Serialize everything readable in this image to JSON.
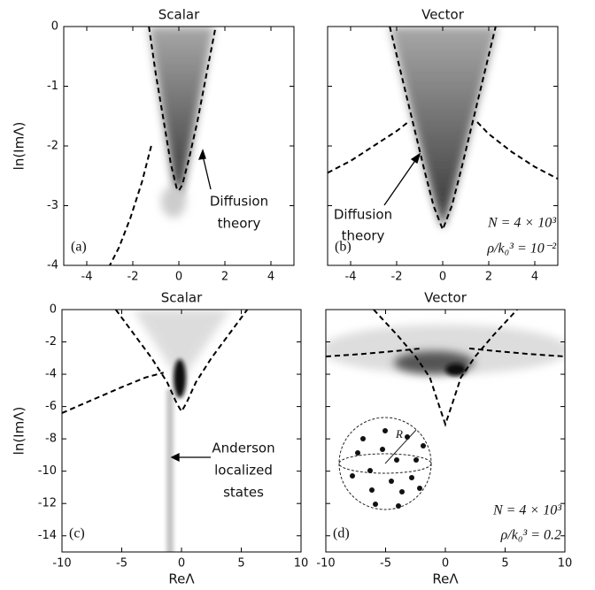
{
  "chart_data": [
    {
      "type": "line",
      "title": "Scalar",
      "ylabel": "ln(ImΛ)",
      "panel_label": "(a)",
      "annotation": [
        "Diffusion",
        "theory"
      ],
      "xlim": [
        -5,
        5
      ],
      "ylim": [
        -4,
        0
      ],
      "xticks": [
        -4,
        -2,
        0,
        2,
        4
      ],
      "yticks": [
        0,
        -1,
        -2,
        -3,
        -4
      ],
      "ytick_labels": true,
      "xtick_labels": true,
      "series": [
        {
          "color": "#000000",
          "x": [
            -1.3,
            -1.0,
            -0.65,
            -0.35,
            -0.1,
            0.0,
            0.15,
            0.45,
            0.8,
            1.2,
            1.6
          ],
          "values": [
            0,
            -0.8,
            -1.6,
            -2.3,
            -2.7,
            -2.75,
            -2.65,
            -2.2,
            -1.6,
            -0.8,
            0
          ]
        },
        {
          "color": "#000000",
          "x": [
            -1.2,
            -1.6,
            -2.1,
            -2.6,
            -3.0
          ],
          "values": [
            -2.0,
            -2.6,
            -3.2,
            -3.7,
            -4.0
          ]
        }
      ]
    },
    {
      "type": "line",
      "title": "Vector",
      "panel_label": "(b)",
      "annotation": [
        "Diffusion",
        "theory"
      ],
      "notes": [
        "N = 4 × 10³",
        "ρ/k₀³ = 10⁻²"
      ],
      "xlim": [
        -5,
        5
      ],
      "ylim": [
        -4,
        0
      ],
      "xticks": [
        -4,
        -2,
        0,
        2,
        4
      ],
      "yticks": [
        0,
        -1,
        -2,
        -3,
        -4
      ],
      "ytick_labels": false,
      "xtick_labels": true,
      "series": [
        {
          "color": "#000000",
          "x": [
            -2.3,
            -1.8,
            -1.3,
            -0.8,
            -0.4,
            0.0,
            0.4,
            0.8,
            1.3,
            1.8,
            2.3
          ],
          "values": [
            0,
            -0.8,
            -1.6,
            -2.4,
            -3.0,
            -3.4,
            -3.0,
            -2.4,
            -1.6,
            -0.8,
            0
          ]
        },
        {
          "color": "#000000",
          "x": [
            -5,
            -4,
            -3,
            -2,
            -1.5
          ],
          "values": [
            -2.45,
            -2.25,
            -2.0,
            -1.75,
            -1.6
          ]
        },
        {
          "color": "#000000",
          "x": [
            1.5,
            2,
            3,
            4,
            5
          ],
          "values": [
            -1.6,
            -1.8,
            -2.1,
            -2.35,
            -2.55
          ]
        }
      ]
    },
    {
      "type": "line",
      "title": "Scalar",
      "ylabel": "ln(ImΛ)",
      "xlabel": "ReΛ",
      "panel_label": "(c)",
      "annotation": [
        "Anderson",
        "localized",
        "states"
      ],
      "xlim": [
        -10,
        10
      ],
      "ylim": [
        -15,
        0
      ],
      "xticks": [
        -10,
        -5,
        0,
        5,
        10
      ],
      "yticks": [
        0,
        -2,
        -4,
        -6,
        -8,
        -10,
        -12,
        -14
      ],
      "ytick_labels": true,
      "xtick_labels": true,
      "series": [
        {
          "color": "#000000",
          "x": [
            -5.5,
            -4,
            -2.5,
            -1.2,
            -0.4,
            0,
            0.4,
            1.2,
            2.5,
            4,
            5.5
          ],
          "values": [
            0,
            -1.5,
            -3.0,
            -4.5,
            -5.8,
            -6.3,
            -5.8,
            -4.5,
            -3.0,
            -1.5,
            0
          ]
        },
        {
          "color": "#000000",
          "x": [
            -10,
            -7.5,
            -5,
            -3,
            -1.5
          ],
          "values": [
            -6.4,
            -5.6,
            -4.8,
            -4.2,
            -3.9
          ]
        }
      ]
    },
    {
      "type": "line",
      "title": "Vector",
      "xlabel": "ReΛ",
      "panel_label": "(d)",
      "inset_label": "R",
      "notes": [
        "N = 4 × 10³",
        "ρ/k₀³ = 0.2"
      ],
      "xlim": [
        -10,
        10
      ],
      "ylim": [
        -15,
        0
      ],
      "xticks": [
        -10,
        -5,
        0,
        5,
        10
      ],
      "yticks": [
        0,
        -2,
        -4,
        -6,
        -8,
        -10,
        -12,
        -14
      ],
      "ytick_labels": false,
      "xtick_labels": true,
      "series": [
        {
          "color": "#000000",
          "x": [
            -6,
            -4,
            -2.5,
            -1.3,
            -0.5,
            0,
            0.5,
            1.3,
            2.5,
            4,
            6
          ],
          "values": [
            0,
            -1.6,
            -2.9,
            -4.2,
            -6.0,
            -7.1,
            -6.0,
            -4.2,
            -2.9,
            -1.6,
            0
          ]
        },
        {
          "color": "#000000",
          "x": [
            -10,
            -7,
            -4,
            -2
          ],
          "values": [
            -2.9,
            -2.75,
            -2.55,
            -2.4
          ]
        },
        {
          "color": "#000000",
          "x": [
            2,
            4,
            7,
            10
          ],
          "values": [
            -2.4,
            -2.55,
            -2.75,
            -2.9
          ]
        }
      ]
    }
  ]
}
